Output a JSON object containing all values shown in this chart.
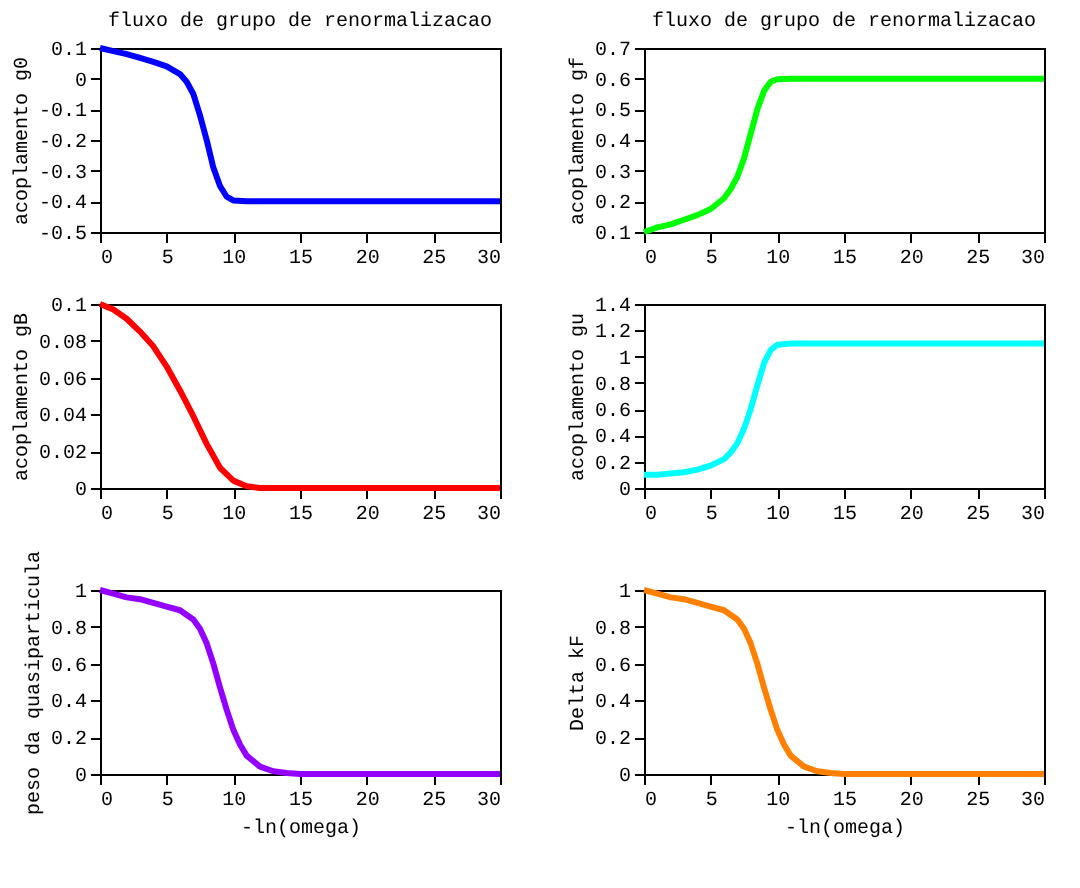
{
  "chart_data": [
    {
      "type": "line",
      "title": "fluxo de grupo de renormalizacao",
      "ylabel": "acoplamento g0",
      "xlim": [
        0,
        30
      ],
      "xticks": [
        0,
        5,
        10,
        15,
        20,
        25,
        30
      ],
      "ylim": [
        -0.5,
        0.1
      ],
      "yticks": [
        -0.5,
        -0.4,
        -0.3,
        -0.2,
        -0.1,
        0,
        0.1
      ],
      "x": [
        0,
        1,
        2,
        3,
        4,
        5,
        6,
        6.5,
        7,
        7.5,
        8,
        8.5,
        9,
        9.5,
        10,
        11,
        15,
        20,
        25,
        30
      ],
      "series": [
        {
          "color": "#0000ff",
          "values": [
            0.1,
            0.09,
            0.08,
            0.068,
            0.055,
            0.04,
            0.015,
            -0.01,
            -0.05,
            -0.12,
            -0.2,
            -0.29,
            -0.35,
            -0.385,
            -0.397,
            -0.4,
            -0.4,
            -0.4,
            -0.4,
            -0.4
          ]
        }
      ]
    },
    {
      "type": "line",
      "title": "fluxo de grupo de renormalizacao",
      "ylabel": "acoplamento gf",
      "xlim": [
        0,
        30
      ],
      "xticks": [
        0,
        5,
        10,
        15,
        20,
        25,
        30
      ],
      "ylim": [
        0.1,
        0.7
      ],
      "yticks": [
        0.1,
        0.2,
        0.3,
        0.4,
        0.5,
        0.6,
        0.7
      ],
      "x": [
        0,
        1,
        2,
        3,
        4,
        5,
        6,
        6.5,
        7,
        7.5,
        8,
        8.5,
        9,
        9.5,
        10,
        11,
        15,
        20,
        25,
        30
      ],
      "series": [
        {
          "color": "#00ff00",
          "values": [
            0.1,
            0.115,
            0.125,
            0.14,
            0.155,
            0.175,
            0.21,
            0.24,
            0.28,
            0.34,
            0.42,
            0.5,
            0.56,
            0.59,
            0.598,
            0.6,
            0.6,
            0.6,
            0.6,
            0.6
          ]
        }
      ]
    },
    {
      "type": "line",
      "ylabel": "acoplamento gB",
      "xlim": [
        0,
        30
      ],
      "xticks": [
        0,
        5,
        10,
        15,
        20,
        25,
        30
      ],
      "ylim": [
        0,
        0.1
      ],
      "yticks": [
        0,
        0.02,
        0.04,
        0.06,
        0.08,
        0.1
      ],
      "x": [
        0,
        1,
        2,
        3,
        4,
        5,
        6,
        7,
        8,
        9,
        10,
        11,
        12,
        15,
        20,
        25,
        30
      ],
      "series": [
        {
          "color": "#ff0000",
          "values": [
            0.1,
            0.097,
            0.092,
            0.085,
            0.077,
            0.066,
            0.053,
            0.039,
            0.024,
            0.011,
            0.004,
            0.001,
            0,
            0,
            0,
            0,
            0
          ]
        }
      ]
    },
    {
      "type": "line",
      "ylabel": "acoplamento gu",
      "xlim": [
        0,
        30
      ],
      "xticks": [
        0,
        5,
        10,
        15,
        20,
        25,
        30
      ],
      "ylim": [
        0,
        1.4
      ],
      "yticks": [
        0,
        0.2,
        0.4,
        0.6,
        0.8,
        1,
        1.2,
        1.4
      ],
      "x": [
        0,
        1,
        2,
        3,
        4,
        5,
        6,
        6.5,
        7,
        7.5,
        8,
        8.5,
        9,
        9.5,
        10,
        11,
        15,
        20,
        25,
        30
      ],
      "series": [
        {
          "color": "#00ffff",
          "values": [
            0.1,
            0.1,
            0.11,
            0.12,
            0.14,
            0.17,
            0.22,
            0.27,
            0.34,
            0.45,
            0.6,
            0.78,
            0.95,
            1.05,
            1.09,
            1.1,
            1.1,
            1.1,
            1.1,
            1.1
          ]
        }
      ]
    },
    {
      "type": "line",
      "xlabel": "-ln(omega)",
      "ylabel": "peso da quasiparticula",
      "xlim": [
        0,
        30
      ],
      "xticks": [
        0,
        5,
        10,
        15,
        20,
        25,
        30
      ],
      "ylim": [
        0,
        1
      ],
      "yticks": [
        0,
        0.2,
        0.4,
        0.6,
        0.8,
        1
      ],
      "x": [
        0,
        1,
        2,
        3,
        4,
        5,
        6,
        7,
        7.5,
        8,
        8.5,
        9,
        9.5,
        10,
        10.5,
        11,
        12,
        13,
        14,
        15,
        20,
        25,
        30
      ],
      "series": [
        {
          "color": "#9400ff",
          "values": [
            1,
            0.98,
            0.96,
            0.95,
            0.93,
            0.91,
            0.89,
            0.84,
            0.79,
            0.71,
            0.6,
            0.47,
            0.35,
            0.24,
            0.16,
            0.1,
            0.04,
            0.015,
            0.005,
            0,
            0,
            0,
            0
          ]
        }
      ]
    },
    {
      "type": "line",
      "xlabel": "-ln(omega)",
      "ylabel": "Delta kF",
      "xlim": [
        0,
        30
      ],
      "xticks": [
        0,
        5,
        10,
        15,
        20,
        25,
        30
      ],
      "ylim": [
        0,
        1
      ],
      "yticks": [
        0,
        0.2,
        0.4,
        0.6,
        0.8,
        1
      ],
      "x": [
        0,
        1,
        2,
        3,
        4,
        5,
        6,
        7,
        7.5,
        8,
        8.5,
        9,
        9.5,
        10,
        10.5,
        11,
        12,
        13,
        14,
        15,
        20,
        25,
        30
      ],
      "series": [
        {
          "color": "#ff8000",
          "values": [
            1,
            0.98,
            0.96,
            0.95,
            0.93,
            0.91,
            0.89,
            0.84,
            0.79,
            0.71,
            0.6,
            0.47,
            0.35,
            0.24,
            0.16,
            0.1,
            0.04,
            0.015,
            0.005,
            0,
            0,
            0,
            0
          ]
        }
      ]
    }
  ]
}
